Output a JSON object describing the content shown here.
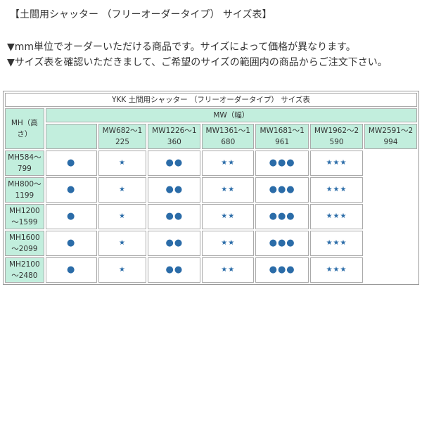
{
  "heading": "【土間用シャッター （フリーオーダータイプ） サイズ表】",
  "notes": [
    "▼mm単位でオーダーいただける商品です。サイズによって価格が異なります。",
    "▼サイズ表を確認いただきまして、ご希望のサイズの範囲内の商品からご注文下さい。"
  ],
  "table": {
    "title": "YKK 土間用シャッター （フリーオーダータイプ） サイズ表",
    "mh_label": "MH（高さ）",
    "mw_label": "MW（幅）",
    "columns": [
      "MW682～1225",
      "MW1226～1360",
      "MW1361～1680",
      "MW1681～1961",
      "MW1962～2590",
      "MW2591～2994"
    ],
    "rows": [
      {
        "label": "MH584～799",
        "cells": [
          "●",
          "★",
          "●●",
          "★★",
          "●●●",
          "★★★"
        ]
      },
      {
        "label": "MH800～1199",
        "cells": [
          "●",
          "★",
          "●●",
          "★★",
          "●●●",
          "★★★"
        ]
      },
      {
        "label": "MH1200～1599",
        "cells": [
          "●",
          "★",
          "●●",
          "★★",
          "●●●",
          "★★★"
        ]
      },
      {
        "label": "MH1600～2099",
        "cells": [
          "●",
          "★",
          "●●",
          "★★",
          "●●●",
          "★★★"
        ]
      },
      {
        "label": "MH2100～2480",
        "cells": [
          "●",
          "★",
          "●●",
          "★★",
          "●●●",
          "★★★"
        ]
      }
    ]
  },
  "colors": {
    "header_bg": "#c2eedd",
    "symbol": "#2b6ca8"
  }
}
